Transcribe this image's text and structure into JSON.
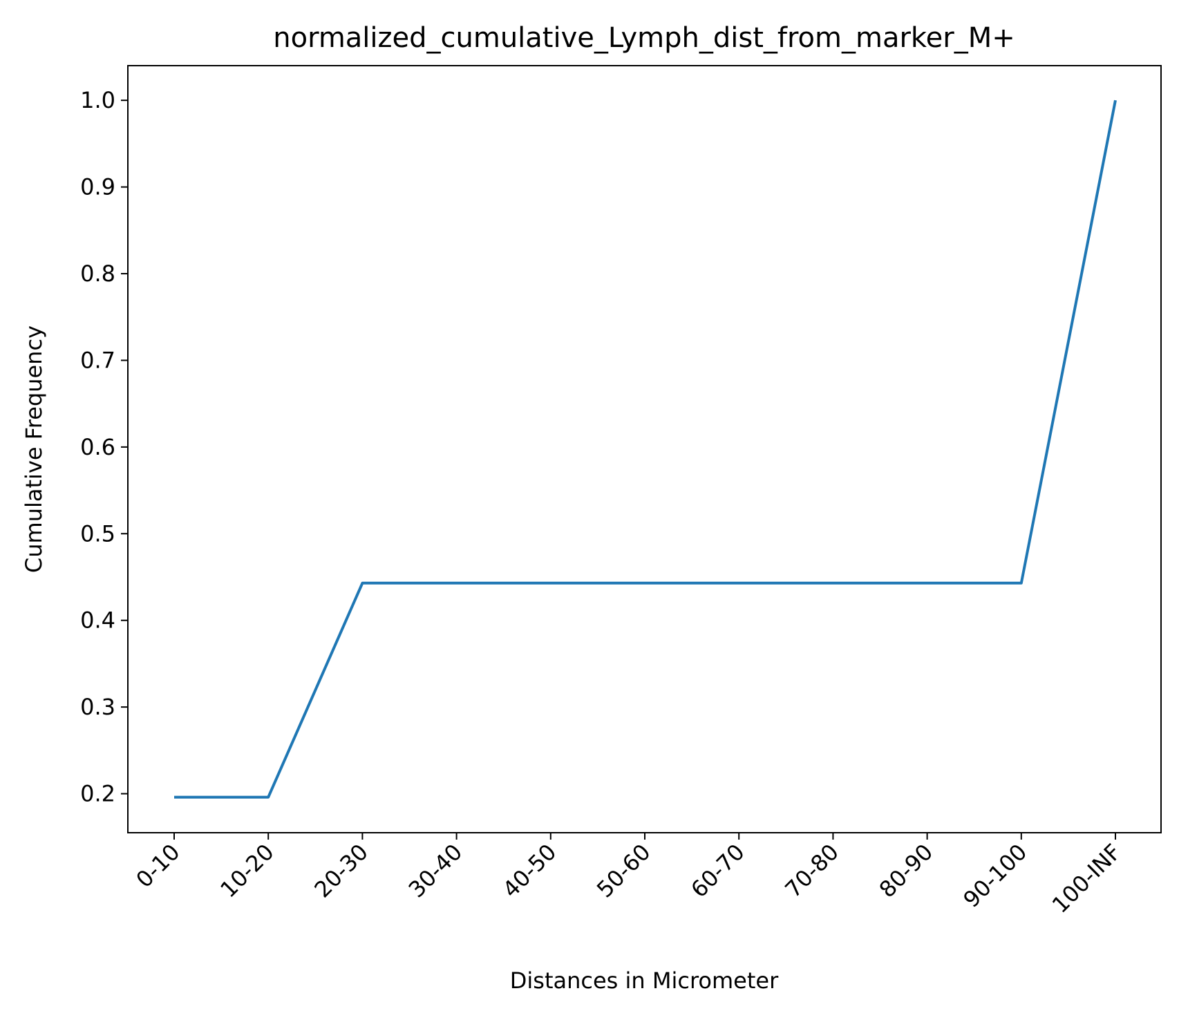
{
  "chart_data": {
    "type": "line",
    "title": "normalized_cumulative_Lymph_dist_from_marker_M+",
    "xlabel": "Distances in Micrometer",
    "ylabel": "Cumulative Frequency",
    "categories": [
      "0-10",
      "10-20",
      "20-30",
      "30-40",
      "40-50",
      "50-60",
      "60-70",
      "70-80",
      "80-90",
      "90-100",
      "100-INF"
    ],
    "series": [
      {
        "values": [
          0.196,
          0.196,
          0.443,
          0.443,
          0.443,
          0.443,
          0.443,
          0.443,
          0.443,
          0.443,
          1.0
        ]
      }
    ],
    "yticks": [
      "0.2",
      "0.3",
      "0.4",
      "0.5",
      "0.6",
      "0.7",
      "0.8",
      "0.9",
      "1.0"
    ],
    "ylim": [
      0.155,
      1.04
    ],
    "grid": false,
    "line_color": "#1f77b4"
  }
}
